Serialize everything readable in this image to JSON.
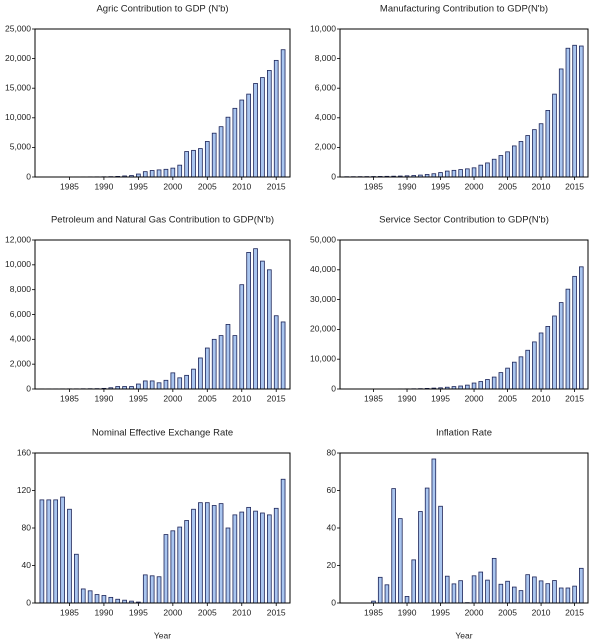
{
  "chart_data": [
    {
      "type": "bar",
      "title": "Agric Contribution to GDP (N'b)",
      "color": "#a9c5ef",
      "x": [
        1981,
        1982,
        1983,
        1984,
        1985,
        1986,
        1987,
        1988,
        1989,
        1990,
        1991,
        1992,
        1993,
        1994,
        1995,
        1996,
        1997,
        1998,
        1999,
        2000,
        2001,
        2002,
        2003,
        2004,
        2005,
        2006,
        2007,
        2008,
        2009,
        2010,
        2011,
        2012,
        2013,
        2014,
        2015,
        2016
      ],
      "values": [
        8,
        9,
        10,
        12,
        15,
        18,
        20,
        25,
        30,
        40,
        60,
        100,
        180,
        250,
        500,
        900,
        1100,
        1200,
        1300,
        1500,
        2000,
        4300,
        4500,
        4800,
        6000,
        7400,
        8500,
        10100,
        11600,
        13000,
        14000,
        15800,
        16800,
        18000,
        19700,
        21500
      ],
      "xlim": [
        1980,
        2017
      ],
      "xticks": [
        1985,
        1990,
        1995,
        2000,
        2005,
        2010,
        2015
      ],
      "ylim": [
        0,
        25000
      ],
      "yticks": [
        0,
        {
          "value": 5000,
          "label": "5,000"
        },
        {
          "value": 10000,
          "label": "10,000"
        },
        {
          "value": 15000,
          "label": "15,000"
        },
        {
          "value": 20000,
          "label": "20,000"
        },
        {
          "value": 25000,
          "label": "25,000"
        }
      ]
    },
    {
      "type": "bar",
      "title": "Manufacturing Contribution to GDP(N'b)",
      "color": "#a9c5ef",
      "x": [
        1981,
        1982,
        1983,
        1984,
        1985,
        1986,
        1987,
        1988,
        1989,
        1990,
        1991,
        1992,
        1993,
        1994,
        1995,
        1996,
        1997,
        1998,
        1999,
        2000,
        2001,
        2002,
        2003,
        2004,
        2005,
        2006,
        2007,
        2008,
        2009,
        2010,
        2011,
        2012,
        2013,
        2014,
        2015,
        2016
      ],
      "values": [
        20,
        22,
        25,
        28,
        32,
        38,
        45,
        55,
        65,
        80,
        100,
        130,
        170,
        220,
        300,
        400,
        450,
        500,
        550,
        620,
        800,
        950,
        1200,
        1450,
        1700,
        2100,
        2400,
        2800,
        3200,
        3600,
        4500,
        5600,
        7300,
        8700,
        8900,
        8850
      ],
      "xlim": [
        1980,
        2017
      ],
      "xticks": [
        1985,
        1990,
        1995,
        2000,
        2005,
        2010,
        2015
      ],
      "ylim": [
        0,
        10000
      ],
      "yticks": [
        0,
        {
          "value": 2000,
          "label": "2,000"
        },
        {
          "value": 4000,
          "label": "4,000"
        },
        {
          "value": 6000,
          "label": "6,000"
        },
        {
          "value": 8000,
          "label": "8,000"
        },
        {
          "value": 10000,
          "label": "10,000"
        }
      ]
    },
    {
      "type": "bar",
      "title": "Petroleum and Natural Gas Contribution to GDP(N'b)",
      "color": "#a9c5ef",
      "x": [
        1981,
        1982,
        1983,
        1984,
        1985,
        1986,
        1987,
        1988,
        1989,
        1990,
        1991,
        1992,
        1993,
        1994,
        1995,
        1996,
        1997,
        1998,
        1999,
        2000,
        2001,
        2002,
        2003,
        2004,
        2005,
        2006,
        2007,
        2008,
        2009,
        2010,
        2011,
        2012,
        2013,
        2014,
        2015,
        2016
      ],
      "values": [
        10,
        10,
        10,
        12,
        15,
        15,
        20,
        25,
        30,
        50,
        100,
        200,
        200,
        200,
        400,
        650,
        650,
        500,
        700,
        1300,
        900,
        1100,
        1600,
        2500,
        3300,
        4000,
        4300,
        5200,
        4300,
        8400,
        11000,
        11300,
        10300,
        9600,
        5900,
        5400
      ],
      "xlim": [
        1980,
        2017
      ],
      "xticks": [
        1985,
        1990,
        1995,
        2000,
        2005,
        2010,
        2015
      ],
      "ylim": [
        0,
        12000
      ],
      "yticks": [
        0,
        {
          "value": 2000,
          "label": "2,000"
        },
        {
          "value": 4000,
          "label": "4,000"
        },
        {
          "value": 6000,
          "label": "6,000"
        },
        {
          "value": 8000,
          "label": "8,000"
        },
        {
          "value": 10000,
          "label": "10,000"
        },
        {
          "value": 12000,
          "label": "12,000"
        }
      ]
    },
    {
      "type": "bar",
      "title": "Service Sector Contribution to GDP(N'b)",
      "color": "#a9c5ef",
      "x": [
        1981,
        1982,
        1983,
        1984,
        1985,
        1986,
        1987,
        1988,
        1989,
        1990,
        1991,
        1992,
        1993,
        1994,
        1995,
        1996,
        1997,
        1998,
        1999,
        2000,
        2001,
        2002,
        2003,
        2004,
        2005,
        2006,
        2007,
        2008,
        2009,
        2010,
        2011,
        2012,
        2013,
        2014,
        2015,
        2016
      ],
      "values": [
        10,
        12,
        14,
        16,
        18,
        20,
        25,
        30,
        40,
        50,
        80,
        120,
        200,
        300,
        400,
        600,
        800,
        1000,
        1300,
        2000,
        2500,
        3200,
        4000,
        5500,
        7000,
        9000,
        10800,
        13000,
        15800,
        18800,
        21000,
        24500,
        29000,
        33500,
        37800,
        41000
      ],
      "xlim": [
        1980,
        2017
      ],
      "xticks": [
        1985,
        1990,
        1995,
        2000,
        2005,
        2010,
        2015
      ],
      "ylim": [
        0,
        50000
      ],
      "yticks": [
        0,
        {
          "value": 10000,
          "label": "10,000"
        },
        {
          "value": 20000,
          "label": "20,000"
        },
        {
          "value": 30000,
          "label": "30,000"
        },
        {
          "value": 40000,
          "label": "40,000"
        },
        {
          "value": 50000,
          "label": "50,000"
        }
      ]
    },
    {
      "type": "bar",
      "title": "Nominal Effective Exchange Rate",
      "xlabel": "Year",
      "color": "#a9c5ef",
      "x": [
        1981,
        1982,
        1983,
        1984,
        1985,
        1986,
        1987,
        1988,
        1989,
        1990,
        1991,
        1992,
        1993,
        1994,
        1995,
        1996,
        1997,
        1998,
        1999,
        2000,
        2001,
        2002,
        2003,
        2004,
        2005,
        2006,
        2007,
        2008,
        2009,
        2010,
        2011,
        2012,
        2013,
        2014,
        2015,
        2016
      ],
      "values": [
        110,
        110,
        110,
        113,
        100,
        52,
        15,
        13,
        9,
        8,
        6,
        4,
        3,
        2,
        1,
        30,
        29,
        28,
        73,
        77,
        81,
        88,
        100,
        107,
        107,
        104,
        106,
        80,
        94,
        97,
        102,
        98,
        96,
        94,
        101,
        132
      ],
      "xlim": [
        1980,
        2017
      ],
      "xticks": [
        1985,
        1990,
        1995,
        2000,
        2005,
        2010,
        2015
      ],
      "ylim": [
        0,
        160
      ],
      "yticks": [
        0,
        40,
        80,
        120,
        160
      ]
    },
    {
      "type": "bar",
      "title": "Inflation Rate",
      "xlabel": "Year",
      "color": "#a9c5ef",
      "x": [
        1981,
        1982,
        1983,
        1984,
        1985,
        1986,
        1987,
        1988,
        1989,
        1990,
        1991,
        1992,
        1993,
        1994,
        1995,
        1996,
        1997,
        1998,
        1999,
        2000,
        2001,
        2002,
        2003,
        2004,
        2005,
        2006,
        2007,
        2008,
        2009,
        2010,
        2011,
        2012,
        2013,
        2014,
        2015,
        2016
      ],
      "values": [
        null,
        null,
        null,
        null,
        1,
        13.7,
        9.7,
        61,
        45,
        3.5,
        23,
        48.8,
        61.3,
        76.8,
        51.6,
        14.3,
        10.2,
        11.9,
        0.2,
        14.5,
        16.5,
        12.2,
        23.8,
        10,
        11.6,
        8.5,
        6.6,
        15.1,
        13.9,
        11.8,
        10.3,
        12,
        8,
        8,
        9,
        18.5
      ],
      "xlim": [
        1980,
        2017
      ],
      "xticks": [
        1985,
        1990,
        1995,
        2000,
        2005,
        2010,
        2015
      ],
      "ylim": [
        0,
        80
      ],
      "yticks": [
        0,
        20,
        40,
        60,
        80
      ]
    }
  ]
}
